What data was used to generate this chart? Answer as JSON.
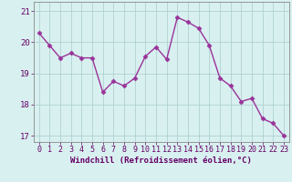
{
  "x": [
    0,
    1,
    2,
    3,
    4,
    5,
    6,
    7,
    8,
    9,
    10,
    11,
    12,
    13,
    14,
    15,
    16,
    17,
    18,
    19,
    20,
    21,
    22,
    23
  ],
  "y": [
    20.3,
    19.9,
    19.5,
    19.65,
    19.5,
    19.5,
    18.4,
    18.75,
    18.6,
    18.85,
    19.55,
    19.85,
    19.45,
    20.8,
    20.65,
    20.45,
    19.9,
    18.85,
    18.6,
    18.1,
    18.2,
    17.55,
    17.4,
    17.0
  ],
  "line_color": "#993399",
  "marker": "D",
  "marker_size": 2.5,
  "line_width": 1.0,
  "bg_color": "#d8f0f0",
  "grid_color": "#aacccc",
  "axis_color": "#888888",
  "tick_color": "#660066",
  "xlabel": "Windchill (Refroidissement éolien,°C)",
  "xlabel_fontsize": 6.5,
  "tick_fontsize": 6.0,
  "ytick_fontsize": 6.5,
  "ylim": [
    16.8,
    21.3
  ],
  "xlim": [
    -0.5,
    23.5
  ],
  "yticks": [
    17,
    18,
    19,
    20,
    21
  ],
  "xticks": [
    0,
    1,
    2,
    3,
    4,
    5,
    6,
    7,
    8,
    9,
    10,
    11,
    12,
    13,
    14,
    15,
    16,
    17,
    18,
    19,
    20,
    21,
    22,
    23
  ]
}
